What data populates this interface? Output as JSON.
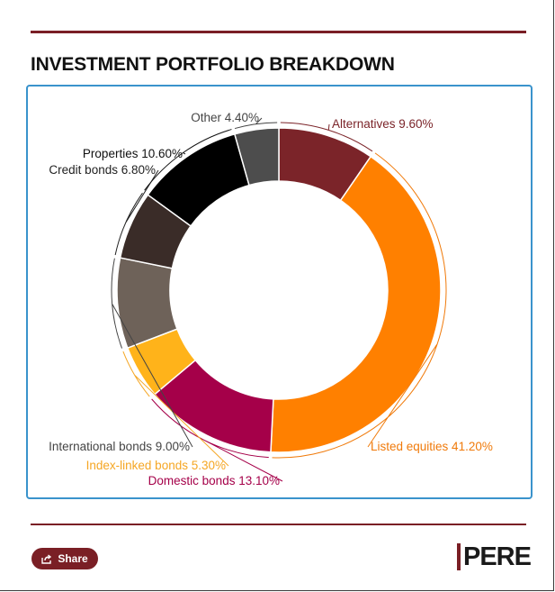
{
  "header": {
    "title": "INVESTMENT PORTFOLIO BREAKDOWN"
  },
  "chart_data": {
    "type": "pie",
    "variant": "donut",
    "title": "INVESTMENT PORTFOLIO BREAKDOWN",
    "unit": "%",
    "slices": [
      {
        "name": "Alternatives",
        "value": 9.6,
        "label": "Alternatives 9.60%",
        "color": "#7b2429",
        "label_color": "#7b2429"
      },
      {
        "name": "Listed equities",
        "value": 41.2,
        "label": "Listed equities 41.20%",
        "color": "#ff8000",
        "label_color": "#f07a0a"
      },
      {
        "name": "Domestic bonds",
        "value": 13.1,
        "label": "Domestic bonds 13.10%",
        "color": "#a50049",
        "label_color": "#a50049"
      },
      {
        "name": "Index-linked bonds",
        "value": 5.3,
        "label": "Index-linked bonds 5.30%",
        "color": "#ffb31a",
        "label_color": "#f5a623"
      },
      {
        "name": "International bonds",
        "value": 9.0,
        "label": "International bonds 9.00%",
        "color": "#6e6259",
        "label_color": "#444444"
      },
      {
        "name": "Credit bonds",
        "value": 6.8,
        "label": "Credit bonds 6.80%",
        "color": "#3a2c28",
        "label_color": "#222222"
      },
      {
        "name": "Properties",
        "value": 10.6,
        "label": "Properties 10.60%",
        "color": "#000000",
        "label_color": "#111111"
      },
      {
        "name": "Other",
        "value": 4.4,
        "label": "Other 4.40%",
        "color": "#4d4d4d",
        "label_color": "#444444"
      }
    ]
  },
  "footer": {
    "share_label": "Share",
    "logo_text": "PERE",
    "share_icon": "share-icon",
    "brand_color": "#7a1f25"
  }
}
